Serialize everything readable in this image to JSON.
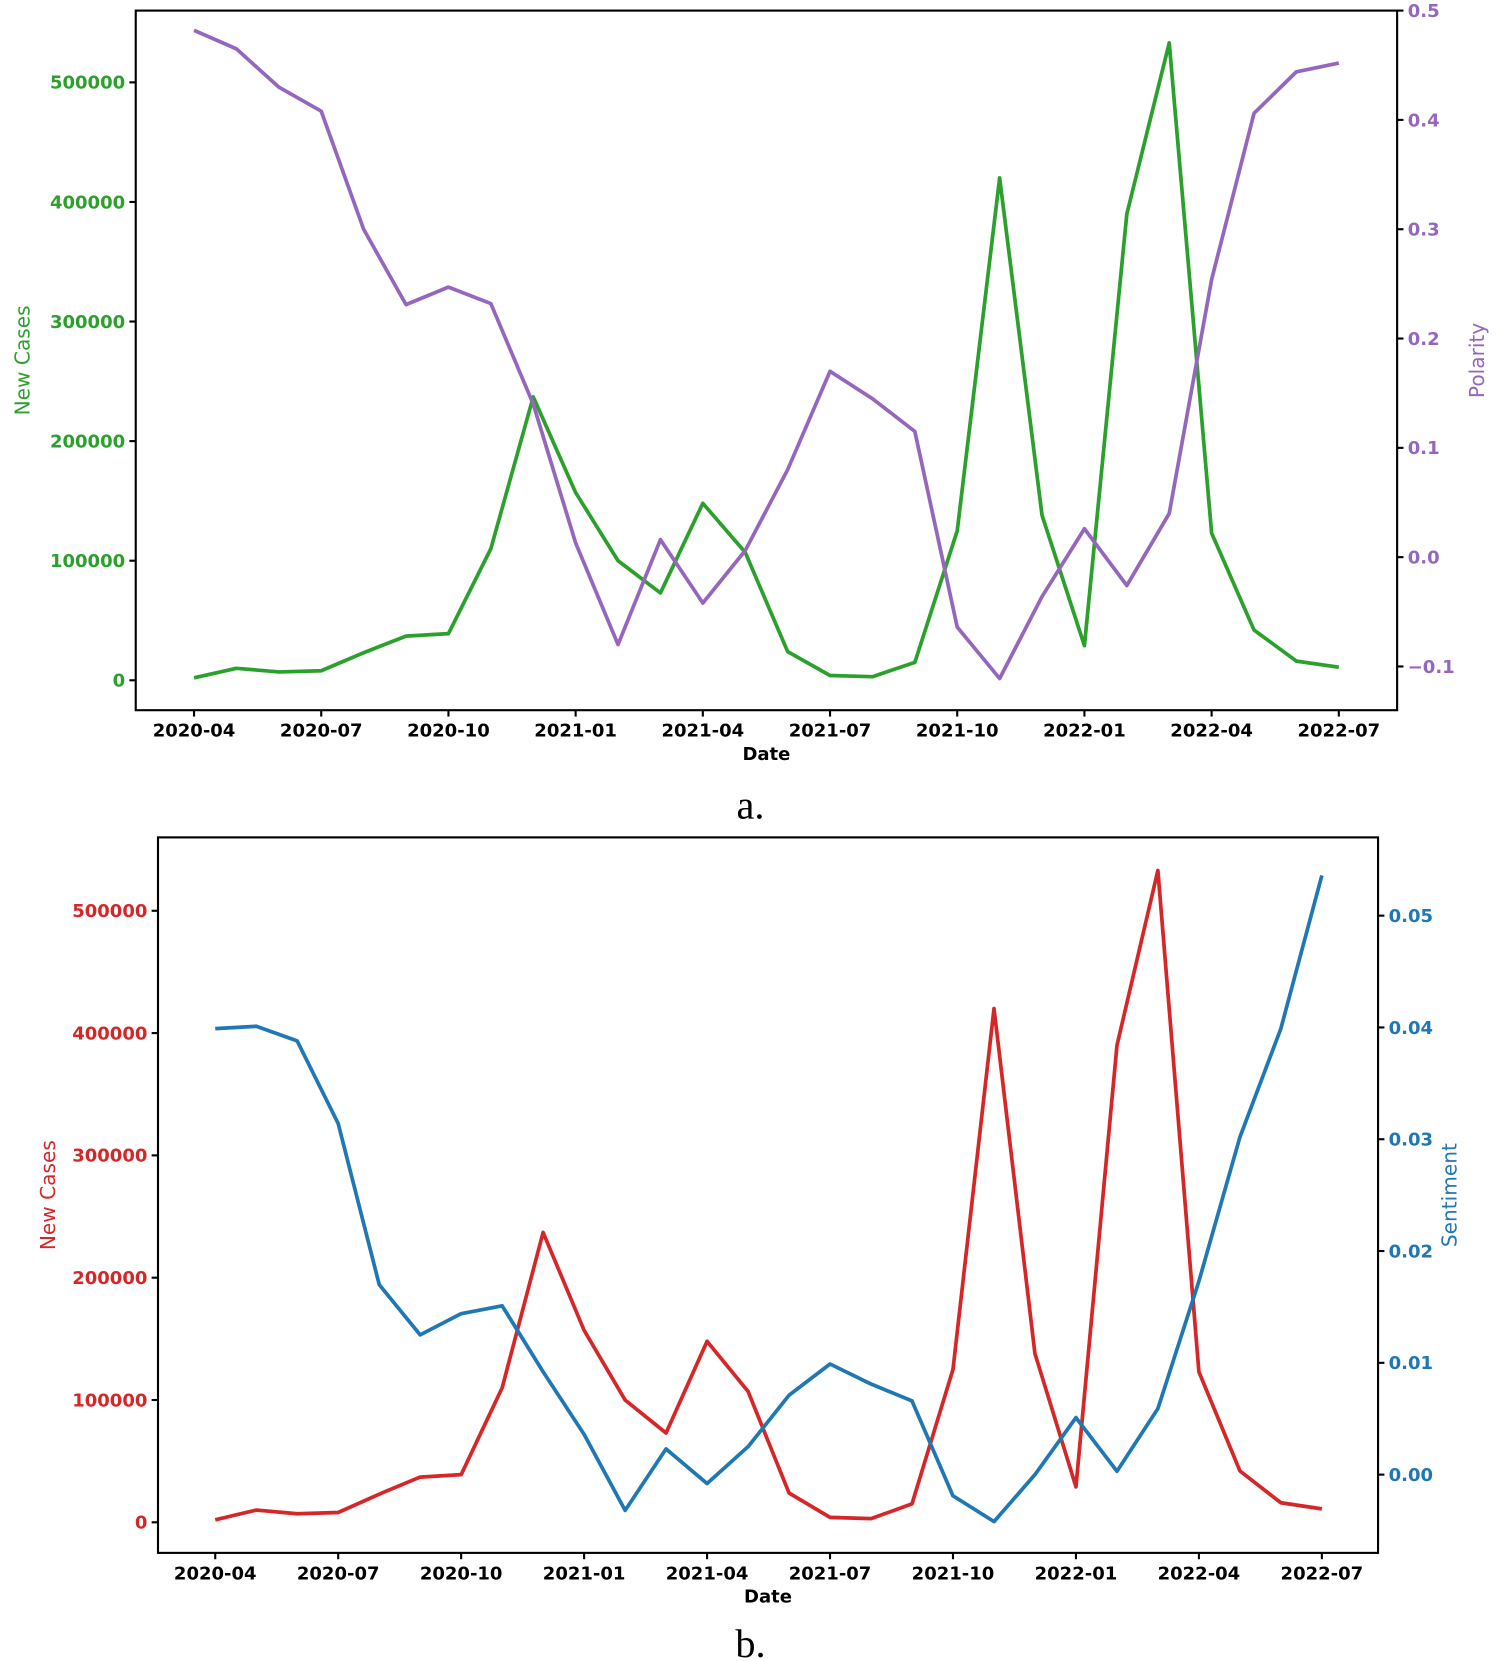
{
  "chart_data": [
    {
      "type": "line",
      "caption": "a.",
      "xlabel": "Date",
      "x": [
        "2020-04",
        "2020-05",
        "2020-06",
        "2020-07",
        "2020-08",
        "2020-09",
        "2020-10",
        "2020-11",
        "2020-12",
        "2021-01",
        "2021-02",
        "2021-03",
        "2021-04",
        "2021-05",
        "2021-06",
        "2021-07",
        "2021-08",
        "2021-09",
        "2021-10",
        "2021-11",
        "2021-12",
        "2022-01",
        "2022-02",
        "2022-03",
        "2022-04",
        "2022-05",
        "2022-06",
        "2022-07"
      ],
      "xticks": [
        "2020-04",
        "2020-07",
        "2020-10",
        "2021-01",
        "2021-04",
        "2021-07",
        "2021-10",
        "2022-01",
        "2022-04",
        "2022-07"
      ],
      "left": {
        "label": "New Cases",
        "color": "#2ca02c",
        "ylim": [
          -25000,
          560000
        ],
        "ticks": [
          0,
          100000,
          200000,
          300000,
          400000,
          500000
        ],
        "values": [
          2000,
          10000,
          7000,
          8000,
          23000,
          37000,
          39000,
          110000,
          237000,
          157000,
          100000,
          73000,
          148000,
          107000,
          24000,
          4000,
          3000,
          15000,
          125000,
          420000,
          138000,
          29000,
          390000,
          533000,
          123000,
          42000,
          16000,
          11000
        ]
      },
      "right": {
        "label": "Polarity",
        "color": "#9467bd",
        "ylim": [
          -0.14,
          0.5
        ],
        "ticks": [
          -0.1,
          0.0,
          0.1,
          0.2,
          0.3,
          0.4,
          0.5
        ],
        "tick_labels": [
          "−0.1",
          "0.0",
          "0.1",
          "0.2",
          "0.3",
          "0.4",
          "0.5"
        ],
        "values": [
          0.482,
          0.465,
          0.43,
          0.408,
          0.3,
          0.231,
          0.247,
          0.232,
          0.14,
          0.013,
          -0.08,
          0.016,
          -0.042,
          0.006,
          0.08,
          0.17,
          0.145,
          0.115,
          -0.064,
          -0.111,
          -0.036,
          0.026,
          -0.026,
          0.04,
          0.254,
          0.406,
          0.444,
          0.452
        ]
      }
    },
    {
      "type": "line",
      "caption": "b.",
      "xlabel": "Date",
      "x": [
        "2020-04",
        "2020-05",
        "2020-06",
        "2020-07",
        "2020-08",
        "2020-09",
        "2020-10",
        "2020-11",
        "2020-12",
        "2021-01",
        "2021-02",
        "2021-03",
        "2021-04",
        "2021-05",
        "2021-06",
        "2021-07",
        "2021-08",
        "2021-09",
        "2021-10",
        "2021-11",
        "2021-12",
        "2022-01",
        "2022-02",
        "2022-03",
        "2022-04",
        "2022-05",
        "2022-06",
        "2022-07"
      ],
      "xticks": [
        "2020-04",
        "2020-07",
        "2020-10",
        "2021-01",
        "2021-04",
        "2021-07",
        "2021-10",
        "2022-01",
        "2022-04",
        "2022-07"
      ],
      "left": {
        "label": "New Cases",
        "color": "#d62728",
        "ylim": [
          -25000,
          560000
        ],
        "ticks": [
          0,
          100000,
          200000,
          300000,
          400000,
          500000
        ],
        "values": [
          2000,
          10000,
          7000,
          8000,
          23000,
          37000,
          39000,
          110000,
          237000,
          157000,
          100000,
          73000,
          148000,
          107000,
          24000,
          4000,
          3000,
          15000,
          125000,
          420000,
          138000,
          29000,
          390000,
          533000,
          123000,
          42000,
          16000,
          11000
        ]
      },
      "right": {
        "label": "Sentiment",
        "color": "#1f77b4",
        "ylim": [
          -0.007,
          0.057
        ],
        "ticks": [
          0.0,
          0.01,
          0.02,
          0.03,
          0.04,
          0.05
        ],
        "tick_labels": [
          "0.00",
          "0.01",
          "0.02",
          "0.03",
          "0.04",
          "0.05"
        ],
        "values": [
          0.0399,
          0.0401,
          0.0388,
          0.0314,
          0.017,
          0.0125,
          0.0144,
          0.0151,
          0.0092,
          0.0036,
          -0.0032,
          0.0023,
          -0.0008,
          0.0025,
          0.0071,
          0.0099,
          0.0081,
          0.0066,
          -0.0019,
          -0.0042,
          0.0,
          0.0051,
          0.0003,
          0.0059,
          0.0173,
          0.0302,
          0.0399,
          0.0536
        ]
      }
    }
  ]
}
